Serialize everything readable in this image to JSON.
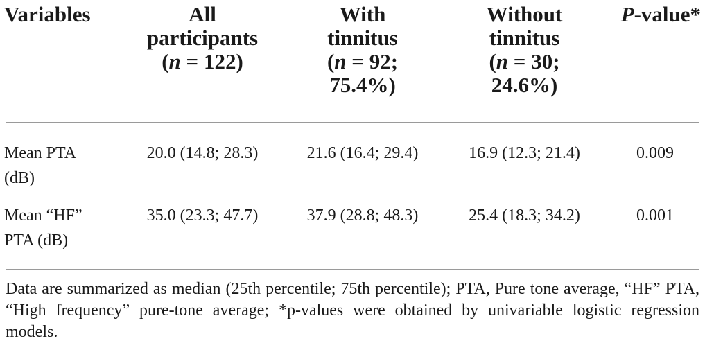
{
  "table": {
    "headers": {
      "variables": "Variables",
      "all": {
        "line1": "All",
        "line2": "participants",
        "n_var": "n",
        "n_rest": " = 122)"
      },
      "with": {
        "line1": "With",
        "line2": "tinnitus",
        "n_var": "n",
        "n_rest": " = 92;",
        "pct": "75.4%)"
      },
      "without": {
        "line1": "Without",
        "line2": "tinnitus",
        "n_var": "n",
        "n_rest": " = 30;",
        "pct": "24.6%)"
      },
      "pvalue": {
        "p": "P",
        "rest": "-value*"
      }
    },
    "rows": [
      {
        "label_line1": "Mean PTA",
        "label_line2": "(dB)",
        "all": "20.0 (14.8; 28.3)",
        "with": "21.6 (16.4; 29.4)",
        "without": "16.9 (12.3; 21.4)",
        "p": "0.009"
      },
      {
        "label_line1": "Mean “HF”",
        "label_line2": "PTA (dB)",
        "all": "35.0 (23.3; 47.7)",
        "with": "37.9 (28.8; 48.3)",
        "without": "25.4 (18.3; 34.2)",
        "p": "0.001"
      }
    ]
  },
  "footnote": "Data are summarized as median (25th percentile; 75th percentile); PTA, Pure tone average, “HF” PTA, “High frequency” pure-tone average; *p-values were obtained by univariable logistic regression models."
}
